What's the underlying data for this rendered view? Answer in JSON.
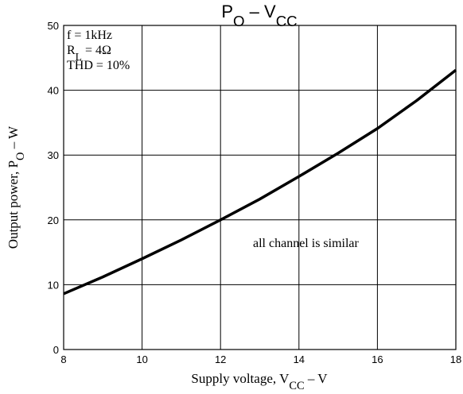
{
  "chart_data": {
    "type": "line",
    "title": [
      "P",
      "O",
      " – V",
      "CC"
    ],
    "x_label": [
      "Supply voltage, V",
      "CC",
      " – V"
    ],
    "y_label": [
      "Output power, P",
      "O",
      " – W"
    ],
    "annotations": [
      [
        "f = 1kHz"
      ],
      [
        "R",
        "L",
        " = 4Ω"
      ],
      [
        "THD = 10%"
      ]
    ],
    "note": "all channel is similar",
    "x": [
      8,
      9,
      10,
      11,
      12,
      13,
      14,
      15,
      16,
      17,
      18
    ],
    "series": [
      {
        "name": "PO",
        "color": "#000000",
        "values": [
          8.6,
          11.2,
          14.0,
          16.9,
          20.0,
          23.2,
          26.7,
          30.3,
          34.1,
          38.4,
          43.1
        ]
      }
    ],
    "xlim": [
      8,
      18
    ],
    "xticks": [
      8,
      10,
      12,
      14,
      16,
      18
    ],
    "ylim": [
      0,
      50
    ],
    "yticks": [
      0,
      10,
      20,
      30,
      40,
      50
    ],
    "grid": true
  }
}
